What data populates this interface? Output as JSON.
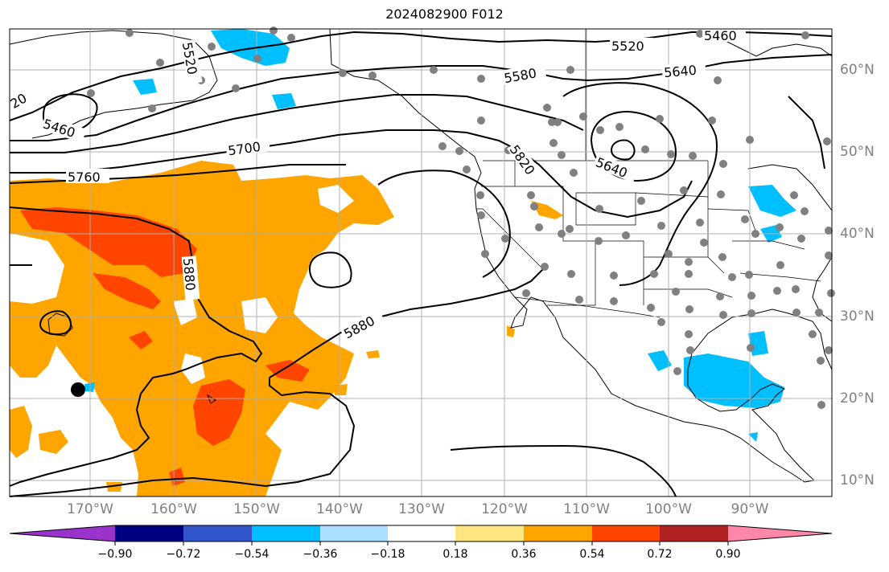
{
  "title": "2024082900 F012",
  "lon_labels": [
    "170°W",
    "160°W",
    "150°W",
    "140°W",
    "130°W",
    "120°W",
    "110°W",
    "100°W",
    "90°W"
  ],
  "lat_labels": [
    "60°N",
    "50°N",
    "40°N",
    "30°N",
    "20°N",
    "10°N"
  ],
  "colorbar": {
    "ticks": [
      "−0.90",
      "−0.72",
      "−0.54",
      "−0.36",
      "−0.18",
      "0.18",
      "0.36",
      "0.54",
      "0.72",
      "0.90"
    ],
    "colors": [
      "#9933cc",
      "#000080",
      "#3355cc",
      "#00bfff",
      "#aadfff",
      "#ffffff",
      "#ffe680",
      "#ffa500",
      "#ff4500",
      "#b22222",
      "#ff88aa"
    ]
  },
  "contour_labels": [
    "5460",
    "5520",
    "5580",
    "5640",
    "5700",
    "5760",
    "5820",
    "5880",
    "5880",
    "5640",
    "5520",
    "5460",
    "20",
    "5880"
  ],
  "colors": {
    "grid": "#b0b0b0",
    "axis_text": "#808080",
    "orange": "#ffa500",
    "red_orange": "#ff4500",
    "cyan": "#00bfff",
    "light_blue": "#aadfff",
    "yellow": "#ffe680"
  }
}
